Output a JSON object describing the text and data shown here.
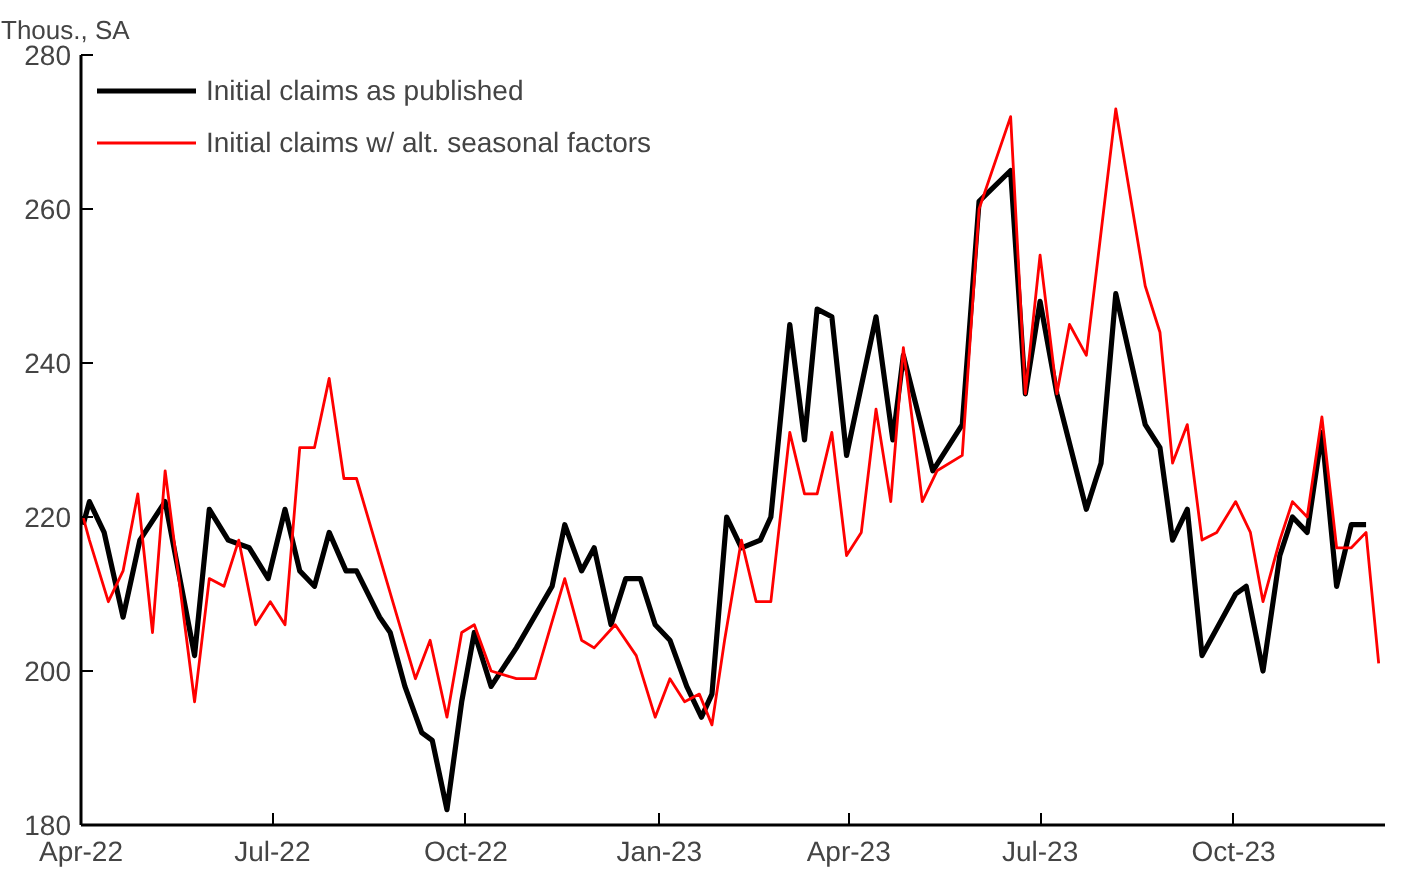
{
  "chart_data": {
    "type": "line",
    "ylabel": "Thous., SA",
    "xlim": [
      "2022-04-01",
      "2023-12-12"
    ],
    "xticks": [
      {
        "value": "2022-04-01",
        "label": "Apr-22"
      },
      {
        "value": "2022-07-01",
        "label": "Jul-22"
      },
      {
        "value": "2022-10-01",
        "label": "Oct-22"
      },
      {
        "value": "2023-01-01",
        "label": "Jan-23"
      },
      {
        "value": "2023-04-01",
        "label": "Apr-23"
      },
      {
        "value": "2023-07-01",
        "label": "Jul-23"
      },
      {
        "value": "2023-10-01",
        "label": "Oct-23"
      }
    ],
    "ylim": [
      180,
      280
    ],
    "yticks": [
      180,
      200,
      220,
      240,
      260,
      280
    ],
    "grid": false,
    "legend": "top left",
    "line_style": "solid",
    "series": [
      {
        "name": "Initial claims as published",
        "color": "#000000",
        "x": [
          "2022-04-02",
          "2022-04-05",
          "2022-04-12",
          "2022-04-21",
          "2022-04-29",
          "2022-05-11",
          "2022-05-25",
          "2022-06-01",
          "2022-06-10",
          "2022-06-20",
          "2022-06-29",
          "2022-07-07",
          "2022-07-14",
          "2022-07-21",
          "2022-07-28",
          "2022-08-05",
          "2022-08-10",
          "2022-08-21",
          "2022-08-26",
          "2022-09-02",
          "2022-09-10",
          "2022-09-15",
          "2022-09-22",
          "2022-09-29",
          "2022-10-05",
          "2022-10-13",
          "2022-10-25",
          "2022-11-11",
          "2022-11-17",
          "2022-11-25",
          "2022-12-01",
          "2022-12-09",
          "2022-12-16",
          "2022-12-23",
          "2022-12-30",
          "2023-01-06",
          "2023-01-14",
          "2023-01-21",
          "2023-01-26",
          "2023-02-02",
          "2023-02-09",
          "2023-02-18",
          "2023-02-23",
          "2023-03-04",
          "2023-03-11",
          "2023-03-17",
          "2023-03-24",
          "2023-03-31",
          "2023-04-14",
          "2023-04-22",
          "2023-04-27",
          "2023-05-11",
          "2023-05-25",
          "2023-06-02",
          "2023-06-17",
          "2023-06-24",
          "2023-07-01",
          "2023-07-09",
          "2023-07-23",
          "2023-07-30",
          "2023-08-06",
          "2023-08-20",
          "2023-08-27",
          "2023-09-02",
          "2023-09-09",
          "2023-09-16",
          "2023-10-02",
          "2023-10-07",
          "2023-10-15",
          "2023-10-23",
          "2023-10-29",
          "2023-11-05",
          "2023-11-12",
          "2023-11-19",
          "2023-11-26",
          "2023-12-03"
        ],
        "values": [
          219,
          222,
          218,
          207,
          217,
          222,
          202,
          221,
          217,
          216,
          212,
          221,
          213,
          211,
          218,
          213,
          213,
          207,
          205,
          198,
          192,
          191,
          182,
          196,
          205,
          198,
          203,
          211,
          219,
          213,
          216,
          206,
          212,
          212,
          206,
          204,
          198,
          194,
          197,
          220,
          216,
          217,
          220,
          245,
          230,
          247,
          246,
          228,
          246,
          230,
          241,
          226,
          232,
          261,
          265,
          236,
          248,
          236,
          221,
          227,
          249,
          232,
          229,
          217,
          221,
          202,
          210,
          211,
          200,
          215,
          220,
          218,
          231,
          211,
          219,
          219
        ]
      },
      {
        "name": "Initial claims w/ alt. seasonal factors",
        "color": "#ff0000",
        "x": [
          "2022-04-02",
          "2022-04-05",
          "2022-04-14",
          "2022-04-21",
          "2022-04-28",
          "2022-05-05",
          "2022-05-11",
          "2022-05-18",
          "2022-05-25",
          "2022-06-01",
          "2022-06-08",
          "2022-06-15",
          "2022-06-23",
          "2022-06-30",
          "2022-07-07",
          "2022-07-14",
          "2022-07-21",
          "2022-07-28",
          "2022-08-04",
          "2022-08-10",
          "2022-09-07",
          "2022-09-14",
          "2022-09-22",
          "2022-09-29",
          "2022-10-05",
          "2022-10-13",
          "2022-10-25",
          "2022-11-03",
          "2022-11-17",
          "2022-11-25",
          "2022-12-01",
          "2022-12-11",
          "2022-12-21",
          "2022-12-30",
          "2023-01-06",
          "2023-01-13",
          "2023-01-20",
          "2023-01-26",
          "2023-02-01",
          "2023-02-09",
          "2023-02-16",
          "2023-02-23",
          "2023-03-04",
          "2023-03-11",
          "2023-03-17",
          "2023-03-24",
          "2023-03-31",
          "2023-04-07",
          "2023-04-14",
          "2023-04-21",
          "2023-04-27",
          "2023-05-06",
          "2023-05-13",
          "2023-05-25",
          "2023-06-02",
          "2023-06-17",
          "2023-06-24",
          "2023-07-01",
          "2023-07-09",
          "2023-07-15",
          "2023-07-23",
          "2023-08-06",
          "2023-08-20",
          "2023-08-27",
          "2023-09-02",
          "2023-09-09",
          "2023-09-16",
          "2023-09-23",
          "2023-10-02",
          "2023-10-09",
          "2023-10-15",
          "2023-10-23",
          "2023-10-29",
          "2023-11-05",
          "2023-11-12",
          "2023-11-19",
          "2023-11-26",
          "2023-12-03",
          "2023-12-09"
        ],
        "values": [
          220,
          217,
          209,
          213,
          223,
          205,
          226,
          211,
          196,
          212,
          211,
          217,
          206,
          209,
          206,
          229,
          229,
          238,
          225,
          225,
          199,
          204,
          194,
          205,
          206,
          200,
          199,
          199,
          212,
          204,
          203,
          206,
          202,
          194,
          199,
          196,
          197,
          193,
          204,
          217,
          209,
          209,
          231,
          223,
          223,
          231,
          215,
          218,
          234,
          222,
          242,
          222,
          226,
          228,
          260,
          272,
          236,
          254,
          236,
          245,
          241,
          273,
          250,
          244,
          227,
          232,
          217,
          218,
          222,
          218,
          209,
          217,
          222,
          220,
          233,
          216,
          216,
          218,
          201
        ]
      }
    ]
  }
}
